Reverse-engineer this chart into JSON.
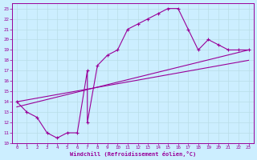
{
  "xlabel": "Windchill (Refroidissement éolien,°C)",
  "bg_color": "#cceeff",
  "grid_color": "#aaccdd",
  "line_color": "#990099",
  "xlim": [
    -0.5,
    23.5
  ],
  "ylim": [
    10,
    23.5
  ],
  "xticks": [
    0,
    1,
    2,
    3,
    4,
    5,
    6,
    7,
    8,
    9,
    10,
    11,
    12,
    13,
    14,
    15,
    16,
    17,
    18,
    19,
    20,
    21,
    22,
    23
  ],
  "yticks": [
    10,
    11,
    12,
    13,
    14,
    15,
    16,
    17,
    18,
    19,
    20,
    21,
    22,
    23
  ],
  "line2_x": [
    0,
    23
  ],
  "line2_y": [
    14,
    19
  ],
  "line3_x": [
    0,
    23
  ],
  "line3_y": [
    13,
    18
  ]
}
